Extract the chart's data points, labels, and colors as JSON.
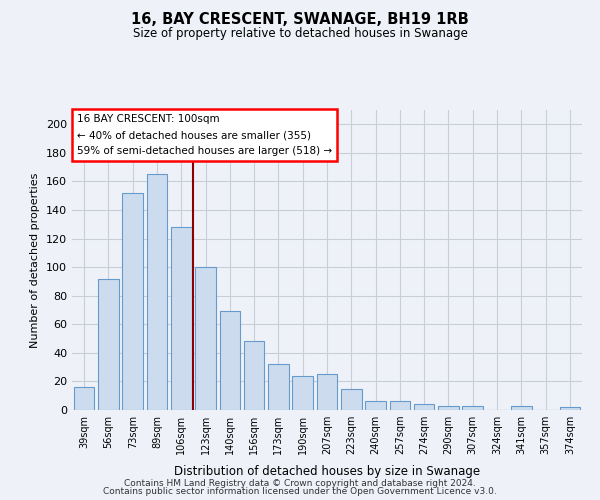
{
  "title": "16, BAY CRESCENT, SWANAGE, BH19 1RB",
  "subtitle": "Size of property relative to detached houses in Swanage",
  "xlabel": "Distribution of detached houses by size in Swanage",
  "ylabel": "Number of detached properties",
  "categories": [
    "39sqm",
    "56sqm",
    "73sqm",
    "89sqm",
    "106sqm",
    "123sqm",
    "140sqm",
    "156sqm",
    "173sqm",
    "190sqm",
    "207sqm",
    "223sqm",
    "240sqm",
    "257sqm",
    "274sqm",
    "290sqm",
    "307sqm",
    "324sqm",
    "341sqm",
    "357sqm",
    "374sqm"
  ],
  "values": [
    16,
    92,
    152,
    165,
    128,
    100,
    69,
    48,
    32,
    24,
    25,
    15,
    6,
    6,
    4,
    3,
    3,
    0,
    3,
    0,
    2
  ],
  "bar_color": "#ccdcee",
  "bar_edge_color": "#6699cc",
  "grid_color": "#c8cdd8",
  "background_color": "#eef2f8",
  "red_line_index": 4,
  "annotation_title": "16 BAY CRESCENT: 100sqm",
  "annotation_line1": "← 40% of detached houses are smaller (355)",
  "annotation_line2": "59% of semi-detached houses are larger (518) →",
  "ylim": [
    0,
    210
  ],
  "yticks": [
    0,
    20,
    40,
    60,
    80,
    100,
    120,
    140,
    160,
    180,
    200
  ],
  "footer1": "Contains HM Land Registry data © Crown copyright and database right 2024.",
  "footer2": "Contains public sector information licensed under the Open Government Licence v3.0."
}
